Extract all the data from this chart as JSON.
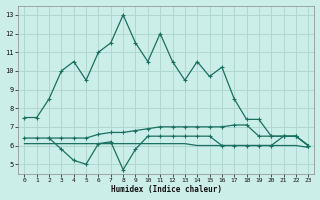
{
  "xlabel": "Humidex (Indice chaleur)",
  "bg_color": "#cceee8",
  "grid_color": "#b0d8d0",
  "line_color": "#1a7060",
  "xlim": [
    -0.5,
    23.5
  ],
  "ylim": [
    4.5,
    13.5
  ],
  "xticks": [
    0,
    1,
    2,
    3,
    4,
    5,
    6,
    7,
    8,
    9,
    10,
    11,
    12,
    13,
    14,
    15,
    16,
    17,
    18,
    19,
    20,
    21,
    22,
    23
  ],
  "yticks": [
    5,
    6,
    7,
    8,
    9,
    10,
    11,
    12,
    13
  ],
  "line1_x": [
    0,
    1,
    2,
    3,
    4,
    5,
    6,
    7,
    8,
    9,
    10,
    11,
    12,
    13,
    14,
    15,
    16,
    17,
    18,
    19,
    20,
    21,
    22,
    23
  ],
  "line1_y": [
    7.5,
    7.5,
    8.5,
    10.0,
    10.5,
    9.5,
    11.0,
    11.5,
    13.0,
    11.5,
    10.5,
    12.0,
    10.5,
    9.5,
    10.5,
    9.7,
    10.2,
    8.5,
    7.4,
    7.4,
    6.5,
    6.5,
    6.5,
    6.0
  ],
  "line2_x": [
    2,
    3,
    4,
    5,
    6,
    7,
    8,
    9,
    10,
    11,
    12,
    13,
    14,
    15,
    16,
    17,
    18,
    19,
    20,
    21,
    22,
    23
  ],
  "line2_y": [
    6.4,
    5.8,
    5.2,
    5.0,
    6.1,
    6.2,
    4.7,
    5.8,
    6.5,
    6.5,
    6.5,
    6.5,
    6.5,
    6.5,
    6.0,
    6.0,
    6.0,
    6.0,
    6.0,
    6.5,
    6.5,
    6.0
  ],
  "line3_x": [
    0,
    1,
    2,
    3,
    4,
    5,
    6,
    7,
    8,
    9,
    10,
    11,
    12,
    13,
    14,
    15,
    16,
    17,
    18,
    19,
    20,
    21,
    22,
    23
  ],
  "line3_y": [
    6.4,
    6.4,
    6.4,
    6.4,
    6.4,
    6.4,
    6.6,
    6.7,
    6.7,
    6.8,
    6.9,
    7.0,
    7.0,
    7.0,
    7.0,
    7.0,
    7.0,
    7.1,
    7.1,
    6.5,
    6.5,
    6.5,
    6.5,
    6.0
  ],
  "line4_x": [
    0,
    1,
    2,
    3,
    4,
    5,
    6,
    7,
    8,
    9,
    10,
    11,
    12,
    13,
    14,
    15,
    16,
    17,
    18,
    19,
    20,
    21,
    22,
    23
  ],
  "line4_y": [
    6.1,
    6.1,
    6.1,
    6.1,
    6.1,
    6.1,
    6.1,
    6.1,
    6.1,
    6.1,
    6.1,
    6.1,
    6.1,
    6.1,
    6.0,
    6.0,
    6.0,
    6.0,
    6.0,
    6.0,
    6.0,
    6.0,
    6.0,
    5.9
  ]
}
